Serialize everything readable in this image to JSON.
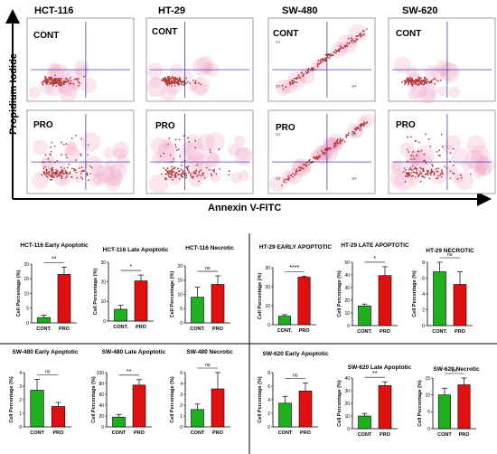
{
  "flow": {
    "columns": [
      "HCT-116",
      "HT-29",
      "SW-480",
      "SW-620"
    ],
    "row_labels": [
      "CONT",
      "PRO"
    ],
    "y_axis_label": "Propidium Iodide",
    "x_axis_label": "Annexin V-FITC",
    "quadrant_labels": [
      "Q1",
      "Q2",
      "Q3",
      "Q4"
    ],
    "colors": {
      "dots": "#b23a3a",
      "haze": "#f2a6c8",
      "gate": "#1f2a8a"
    }
  },
  "colors": {
    "cont_bar": "#1fb01f",
    "pro_bar": "#e01010",
    "error_bar": "#000000"
  },
  "chart_data": [
    {
      "type": "bar",
      "title": "HCT-116 Early Apoptotic",
      "ylabel": "Cell Percentage (%)",
      "categories": [
        "CONT.",
        "PRO"
      ],
      "values": [
        1.8,
        16.5
      ],
      "errors": [
        0.8,
        2.5
      ],
      "ylim": [
        0,
        20
      ],
      "yticks": [
        0,
        5,
        10,
        15,
        20
      ],
      "significance": "**"
    },
    {
      "type": "bar",
      "title": "HCT-116 Late Apoptotic",
      "ylabel": "Cell Percentage (%)",
      "categories": [
        "CONT.",
        "PRO"
      ],
      "values": [
        6,
        20.5
      ],
      "errors": [
        2,
        3
      ],
      "ylim": [
        0,
        30
      ],
      "yticks": [
        0,
        10,
        20,
        30
      ],
      "significance": "*"
    },
    {
      "type": "bar",
      "title": "HCT-116 Necrotic",
      "ylabel": "Cell Percentage (%)",
      "categories": [
        "CONT.",
        "PRO"
      ],
      "values": [
        9,
        13.5
      ],
      "errors": [
        3.5,
        3
      ],
      "ylim": [
        0,
        20
      ],
      "yticks": [
        0,
        5,
        10,
        15,
        20
      ],
      "significance": "ns"
    },
    {
      "type": "bar",
      "title": "HT-29 EARLY APOPTOTIC",
      "ylabel": "Cell Percentage (%)",
      "categories": [
        "CONT.",
        "PRO"
      ],
      "values": [
        4.5,
        25
      ],
      "errors": [
        0.8,
        0.6
      ],
      "ylim": [
        0,
        30
      ],
      "yticks": [
        0,
        10,
        20,
        30
      ],
      "significance": "****"
    },
    {
      "type": "bar",
      "title": "HT-29 LATE APOPTOTIC",
      "ylabel": "Cell Percentage (%)",
      "categories": [
        "CONT.",
        "PRO"
      ],
      "values": [
        15.5,
        39.5
      ],
      "errors": [
        1.5,
        7
      ],
      "ylim": [
        0,
        50
      ],
      "yticks": [
        0,
        10,
        20,
        30,
        40,
        50
      ],
      "significance": "*"
    },
    {
      "type": "bar",
      "title": "HT-29 NECROTIC",
      "ylabel": "Cell Percentage (%)",
      "categories": [
        "CONT.",
        "PRO"
      ],
      "values": [
        6.8,
        5.2
      ],
      "errors": [
        1.2,
        1.6
      ],
      "ylim": [
        0,
        8
      ],
      "yticks": [
        0,
        2,
        4,
        6,
        8
      ],
      "significance": "ns"
    },
    {
      "type": "bar",
      "title": "SW-480 Early Apoptotic",
      "ylabel": "Cell Percentage (%)",
      "categories": [
        "CONT",
        "PRO"
      ],
      "values": [
        2.7,
        1.5
      ],
      "errors": [
        0.8,
        0.3
      ],
      "ylim": [
        0,
        4
      ],
      "yticks": [
        0,
        1,
        2,
        3,
        4
      ],
      "significance": "ns"
    },
    {
      "type": "bar",
      "title": "SW-480 Late Apoptotic",
      "ylabel": "Cell Percentage (%)",
      "categories": [
        "CONT",
        "PRO"
      ],
      "values": [
        18,
        77
      ],
      "errors": [
        5,
        10
      ],
      "ylim": [
        0,
        100
      ],
      "yticks": [
        0,
        20,
        40,
        60,
        80,
        100
      ],
      "significance": "**"
    },
    {
      "type": "bar",
      "title": "SW-480 Necrotic",
      "ylabel": "Cell Percentage (%)",
      "categories": [
        "CONT",
        "PRO"
      ],
      "values": [
        1.6,
        3.5
      ],
      "errors": [
        0.5,
        1.5
      ],
      "ylim": [
        0,
        5
      ],
      "yticks": [
        0,
        1,
        2,
        3,
        4,
        5
      ],
      "significance": "ns"
    },
    {
      "type": "bar",
      "title": "SW-620 Early Apoptotic",
      "ylabel": "Cell Percentage (%)",
      "categories": [
        "CONT",
        "PRO"
      ],
      "values": [
        3.5,
        5.3
      ],
      "errors": [
        1,
        1.2
      ],
      "ylim": [
        0,
        8
      ],
      "yticks": [
        0,
        2,
        4,
        6,
        8
      ],
      "significance": "ns"
    },
    {
      "type": "bar",
      "title": "SW-620 Late Apoptotic",
      "ylabel": "Cell Percentage (%)",
      "categories": [
        "CONT",
        "PRO"
      ],
      "values": [
        10,
        34
      ],
      "errors": [
        2,
        3
      ],
      "ylim": [
        0,
        40
      ],
      "yticks": [
        0,
        10,
        20,
        30,
        40
      ],
      "significance": "**"
    },
    {
      "type": "bar",
      "title": "SW-620 Necrotic",
      "ylabel": "Cell Percentage (%)",
      "categories": [
        "CONT",
        "PRO"
      ],
      "values": [
        10,
        13
      ],
      "errors": [
        2,
        2
      ],
      "ylim": [
        0,
        15
      ],
      "yticks": [
        0,
        5,
        10,
        15
      ],
      "significance": "ns"
    }
  ]
}
